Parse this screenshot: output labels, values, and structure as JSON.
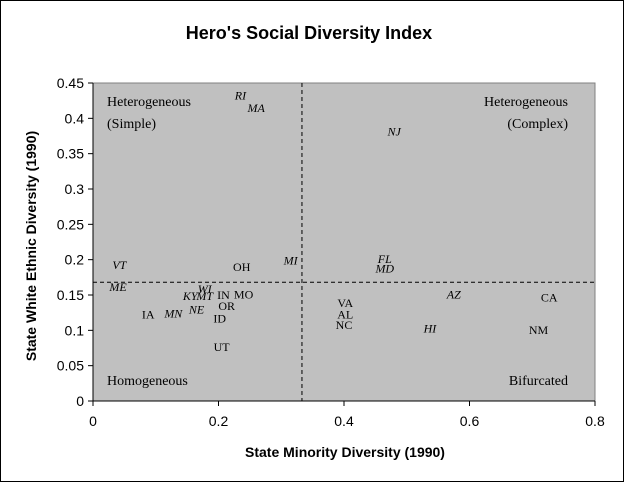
{
  "chart_data": {
    "type": "scatter",
    "title": "Hero's Social Diversity Index",
    "xlabel": "State Minority Diversity (1990)",
    "ylabel": "State White Ethnic Diversity (1990)",
    "xlim": [
      0,
      0.8
    ],
    "ylim": [
      0,
      0.45
    ],
    "xticks": [
      "0",
      "0.2",
      "0.4",
      "0.6",
      "0.8"
    ],
    "yticks": [
      "0",
      "0.05",
      "0.1",
      "0.15",
      "0.2",
      "0.25",
      "0.3",
      "0.35",
      "0.4",
      "0.45"
    ],
    "plot_background": "#c0c0c0",
    "grid": false,
    "reference_lines": {
      "x": 0.333,
      "y": 0.168,
      "style": "dashed"
    },
    "quadrant_labels": [
      {
        "lines": [
          "Heterogeneous",
          "(Simple)"
        ],
        "position": "top-left"
      },
      {
        "lines": [
          "Heterogeneous",
          "(Complex)"
        ],
        "position": "top-right"
      },
      {
        "lines": [
          "Homogeneous"
        ],
        "position": "bottom-left"
      },
      {
        "lines": [
          "Bifurcated"
        ],
        "position": "bottom-right"
      }
    ],
    "points": [
      {
        "label": "RI",
        "x": 0.235,
        "y": 0.427,
        "italic": true
      },
      {
        "label": "MA",
        "x": 0.26,
        "y": 0.409,
        "italic": true
      },
      {
        "label": "NJ",
        "x": 0.48,
        "y": 0.376,
        "italic": true
      },
      {
        "label": "VT",
        "x": 0.042,
        "y": 0.187,
        "italic": true
      },
      {
        "label": "OH",
        "x": 0.237,
        "y": 0.184,
        "italic": false
      },
      {
        "label": "MI",
        "x": 0.315,
        "y": 0.193,
        "italic": true
      },
      {
        "label": "FL",
        "x": 0.465,
        "y": 0.195,
        "italic": true
      },
      {
        "label": "MD",
        "x": 0.465,
        "y": 0.182,
        "italic": true
      },
      {
        "label": "ME",
        "x": 0.04,
        "y": 0.156,
        "italic": true
      },
      {
        "label": "WI",
        "x": 0.178,
        "y": 0.153,
        "italic": true
      },
      {
        "label": "KY",
        "x": 0.155,
        "y": 0.143,
        "italic": true
      },
      {
        "label": "MT",
        "x": 0.178,
        "y": 0.143,
        "italic": true
      },
      {
        "label": "IN",
        "x": 0.208,
        "y": 0.144,
        "italic": false
      },
      {
        "label": "MO",
        "x": 0.24,
        "y": 0.145,
        "italic": false
      },
      {
        "label": "OR",
        "x": 0.213,
        "y": 0.129,
        "italic": false
      },
      {
        "label": "NE",
        "x": 0.165,
        "y": 0.124,
        "italic": true
      },
      {
        "label": "MN",
        "x": 0.128,
        "y": 0.118,
        "italic": true
      },
      {
        "label": "IA",
        "x": 0.088,
        "y": 0.117,
        "italic": false
      },
      {
        "label": "ID",
        "x": 0.202,
        "y": 0.111,
        "italic": false
      },
      {
        "label": "UT",
        "x": 0.205,
        "y": 0.071,
        "italic": false
      },
      {
        "label": "VA",
        "x": 0.402,
        "y": 0.133,
        "italic": false
      },
      {
        "label": "AL",
        "x": 0.402,
        "y": 0.117,
        "italic": false
      },
      {
        "label": "NC",
        "x": 0.4,
        "y": 0.102,
        "italic": false
      },
      {
        "label": "AZ",
        "x": 0.575,
        "y": 0.145,
        "italic": true
      },
      {
        "label": "HI",
        "x": 0.537,
        "y": 0.097,
        "italic": true
      },
      {
        "label": "CA",
        "x": 0.727,
        "y": 0.141,
        "italic": false
      },
      {
        "label": "NM",
        "x": 0.71,
        "y": 0.095,
        "italic": false
      }
    ]
  }
}
